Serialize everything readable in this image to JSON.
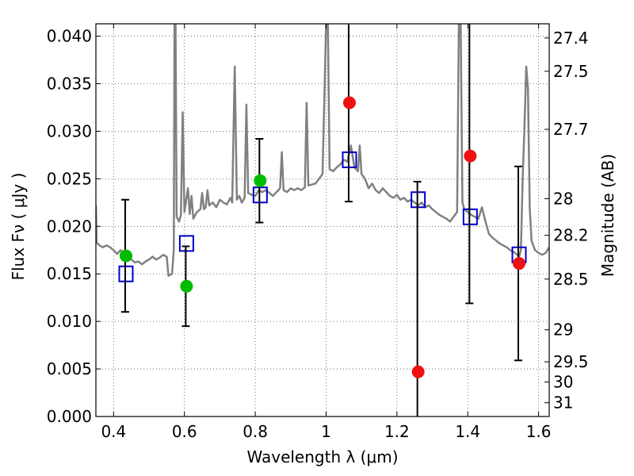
{
  "chart_data": {
    "type": "scatter",
    "xlabel": "Wavelength  λ (μm)",
    "ylabel": "Flux  Fν  ( μJy )",
    "y2label": "Magnitude (AB)",
    "xlim": [
      0.35,
      1.63
    ],
    "ylim": [
      0.0,
      0.0413
    ],
    "grid": true,
    "x_ticks": [
      "0.4",
      "0.6",
      "0.8",
      "1",
      "1.2",
      "1.4",
      "1.6"
    ],
    "x_tick_values": [
      0.4,
      0.6,
      0.8,
      1.0,
      1.2,
      1.4,
      1.6
    ],
    "y_ticks": [
      "0.000",
      "0.005",
      "0.010",
      "0.015",
      "0.020",
      "0.025",
      "0.030",
      "0.035",
      "0.040"
    ],
    "y_tick_values": [
      0.0,
      0.005,
      0.01,
      0.015,
      0.02,
      0.025,
      0.03,
      0.035,
      0.04
    ],
    "y2_ticks": [
      "27.4",
      "27.5",
      "27.7",
      "28",
      "28.2",
      "28.5",
      "29",
      "29.5",
      "30",
      "31"
    ],
    "y2_tick_values": [
      27.4,
      27.5,
      27.7,
      28,
      28.2,
      28.5,
      29,
      29.5,
      30,
      31
    ],
    "colors": {
      "model": "#808080",
      "observed_detected": "#00bb00",
      "observed_undetected": "#ee1111",
      "model_photometry": "#0000cc",
      "errorbar": "#000000",
      "grid": "#555555"
    },
    "model_spectrum": [
      [
        0.35,
        0.0222
      ],
      [
        0.352,
        0.0183
      ],
      [
        0.36,
        0.018
      ],
      [
        0.37,
        0.0178
      ],
      [
        0.38,
        0.018
      ],
      [
        0.39,
        0.0178
      ],
      [
        0.4,
        0.0175
      ],
      [
        0.41,
        0.0171
      ],
      [
        0.42,
        0.0175
      ],
      [
        0.43,
        0.017
      ],
      [
        0.44,
        0.0168
      ],
      [
        0.45,
        0.0165
      ],
      [
        0.46,
        0.0162
      ],
      [
        0.47,
        0.0163
      ],
      [
        0.48,
        0.016
      ],
      [
        0.49,
        0.0163
      ],
      [
        0.5,
        0.0165
      ],
      [
        0.51,
        0.0168
      ],
      [
        0.52,
        0.0165
      ],
      [
        0.53,
        0.0167
      ],
      [
        0.54,
        0.017
      ],
      [
        0.55,
        0.0168
      ],
      [
        0.555,
        0.0148
      ],
      [
        0.565,
        0.015
      ],
      [
        0.57,
        0.0175
      ],
      [
        0.572,
        0.0413
      ],
      [
        0.575,
        0.0413
      ],
      [
        0.578,
        0.021
      ],
      [
        0.585,
        0.0205
      ],
      [
        0.59,
        0.0212
      ],
      [
        0.595,
        0.032
      ],
      [
        0.6,
        0.0215
      ],
      [
        0.61,
        0.024
      ],
      [
        0.615,
        0.0213
      ],
      [
        0.62,
        0.0232
      ],
      [
        0.625,
        0.0208
      ],
      [
        0.635,
        0.0215
      ],
      [
        0.645,
        0.0218
      ],
      [
        0.65,
        0.0235
      ],
      [
        0.655,
        0.0218
      ],
      [
        0.66,
        0.022
      ],
      [
        0.665,
        0.0238
      ],
      [
        0.67,
        0.0222
      ],
      [
        0.68,
        0.0225
      ],
      [
        0.69,
        0.022
      ],
      [
        0.7,
        0.0228
      ],
      [
        0.71,
        0.0225
      ],
      [
        0.72,
        0.0223
      ],
      [
        0.73,
        0.023
      ],
      [
        0.735,
        0.0225
      ],
      [
        0.742,
        0.0368
      ],
      [
        0.748,
        0.0228
      ],
      [
        0.755,
        0.0232
      ],
      [
        0.762,
        0.0225
      ],
      [
        0.77,
        0.023
      ],
      [
        0.775,
        0.0328
      ],
      [
        0.78,
        0.0235
      ],
      [
        0.79,
        0.0233
      ],
      [
        0.8,
        0.0232
      ],
      [
        0.81,
        0.0238
      ],
      [
        0.82,
        0.0236
      ],
      [
        0.83,
        0.0238
      ],
      [
        0.84,
        0.0235
      ],
      [
        0.85,
        0.0232
      ],
      [
        0.86,
        0.0236
      ],
      [
        0.87,
        0.024
      ],
      [
        0.875,
        0.0278
      ],
      [
        0.88,
        0.0238
      ],
      [
        0.89,
        0.0236
      ],
      [
        0.9,
        0.024
      ],
      [
        0.91,
        0.0238
      ],
      [
        0.92,
        0.024
      ],
      [
        0.93,
        0.0238
      ],
      [
        0.94,
        0.0241
      ],
      [
        0.945,
        0.033
      ],
      [
        0.95,
        0.0243
      ],
      [
        0.96,
        0.0244
      ],
      [
        0.97,
        0.0245
      ],
      [
        0.98,
        0.025
      ],
      [
        0.99,
        0.0255
      ],
      [
        1.0,
        0.0413
      ],
      [
        1.005,
        0.0413
      ],
      [
        1.01,
        0.026
      ],
      [
        1.02,
        0.0258
      ],
      [
        1.03,
        0.0262
      ],
      [
        1.04,
        0.0265
      ],
      [
        1.05,
        0.027
      ],
      [
        1.06,
        0.0268
      ],
      [
        1.07,
        0.0285
      ],
      [
        1.08,
        0.0262
      ],
      [
        1.09,
        0.0258
      ],
      [
        1.095,
        0.0285
      ],
      [
        1.1,
        0.0255
      ],
      [
        1.11,
        0.025
      ],
      [
        1.12,
        0.024
      ],
      [
        1.13,
        0.0245
      ],
      [
        1.14,
        0.0238
      ],
      [
        1.15,
        0.0235
      ],
      [
        1.16,
        0.024
      ],
      [
        1.17,
        0.0236
      ],
      [
        1.18,
        0.0232
      ],
      [
        1.19,
        0.023
      ],
      [
        1.2,
        0.0233
      ],
      [
        1.21,
        0.0228
      ],
      [
        1.22,
        0.023
      ],
      [
        1.23,
        0.0226
      ],
      [
        1.24,
        0.0228
      ],
      [
        1.25,
        0.0225
      ],
      [
        1.26,
        0.0222
      ],
      [
        1.27,
        0.0225
      ],
      [
        1.28,
        0.022
      ],
      [
        1.29,
        0.0222
      ],
      [
        1.3,
        0.0218
      ],
      [
        1.31,
        0.0215
      ],
      [
        1.32,
        0.0212
      ],
      [
        1.33,
        0.021
      ],
      [
        1.34,
        0.0208
      ],
      [
        1.35,
        0.0205
      ],
      [
        1.36,
        0.021
      ],
      [
        1.37,
        0.0215
      ],
      [
        1.375,
        0.0413
      ],
      [
        1.38,
        0.0413
      ],
      [
        1.385,
        0.0225
      ],
      [
        1.39,
        0.0218
      ],
      [
        1.4,
        0.0215
      ],
      [
        1.41,
        0.0212
      ],
      [
        1.42,
        0.021
      ],
      [
        1.43,
        0.0208
      ],
      [
        1.44,
        0.022
      ],
      [
        1.45,
        0.0205
      ],
      [
        1.46,
        0.0192
      ],
      [
        1.47,
        0.0188
      ],
      [
        1.48,
        0.0185
      ],
      [
        1.49,
        0.0182
      ],
      [
        1.5,
        0.018
      ],
      [
        1.51,
        0.0178
      ],
      [
        1.52,
        0.0175
      ],
      [
        1.53,
        0.0173
      ],
      [
        1.54,
        0.017
      ],
      [
        1.545,
        0.0168
      ],
      [
        1.55,
        0.0175
      ],
      [
        1.555,
        0.025
      ],
      [
        1.56,
        0.0302
      ],
      [
        1.565,
        0.0368
      ],
      [
        1.57,
        0.0345
      ],
      [
        1.575,
        0.022
      ],
      [
        1.58,
        0.0185
      ],
      [
        1.59,
        0.0175
      ],
      [
        1.6,
        0.0172
      ],
      [
        1.61,
        0.017
      ],
      [
        1.62,
        0.0172
      ],
      [
        1.63,
        0.0178
      ]
    ],
    "model_photometry": [
      {
        "x": 0.435,
        "y": 0.015
      },
      {
        "x": 0.606,
        "y": 0.0182
      },
      {
        "x": 0.814,
        "y": 0.0233
      },
      {
        "x": 1.066,
        "y": 0.027
      },
      {
        "x": 1.26,
        "y": 0.0228
      },
      {
        "x": 1.407,
        "y": 0.021
      },
      {
        "x": 1.545,
        "y": 0.017
      }
    ],
    "observed_detected": [
      {
        "x": 0.435,
        "y": 0.0169,
        "err": 0.0059
      },
      {
        "x": 0.606,
        "y": 0.0137,
        "err": 0.0042
      },
      {
        "x": 0.814,
        "y": 0.0248,
        "err": 0.0044
      }
    ],
    "observed_undetected": [
      {
        "x": 1.066,
        "y": 0.033,
        "err": 0.0104
      },
      {
        "x": 1.26,
        "y": 0.0047,
        "err": 0.02
      },
      {
        "x": 1.407,
        "y": 0.0274,
        "err": 0.0155
      },
      {
        "x": 1.545,
        "y": 0.0161,
        "err": 0.0102
      }
    ]
  }
}
